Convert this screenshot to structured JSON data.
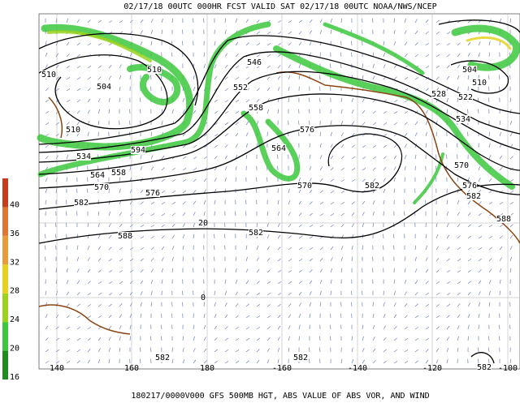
{
  "header": {
    "title": "02/17/18 00UTC 000HR FCST VALID SAT 02/17/18 00UTC NOAA/NWS/NCEP"
  },
  "footer": {
    "caption": "180217/0000V000 GFS 500MB HGT, ABS VALUE OF ABS VOR, AND WIND"
  },
  "colorbar": {
    "ticks": [
      16,
      20,
      24,
      28,
      32,
      36,
      40
    ],
    "colors": [
      "#1e8c1e",
      "#3cc83c",
      "#9ad21e",
      "#e6d21e",
      "#e69b3c",
      "#dc7832",
      "#c83c1e"
    ]
  },
  "longitude_labels": [
    140,
    160,
    180,
    -160,
    -140,
    -120,
    -100
  ],
  "latitude_labels": [
    20,
    0
  ],
  "contour_labels": [
    510,
    504,
    510,
    546,
    552,
    558,
    576,
    564,
    570,
    582,
    582,
    588,
    582,
    576,
    570,
    564,
    558,
    594,
    534,
    510,
    528,
    534,
    570,
    576,
    582,
    588,
    504,
    510,
    522,
    582,
    582,
    582
  ]
}
